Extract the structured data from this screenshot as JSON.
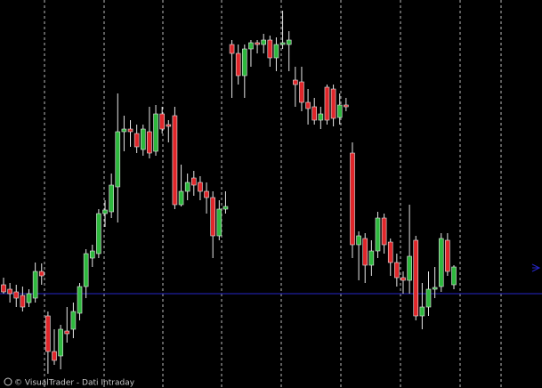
{
  "chart_data": {
    "type": "candlestick",
    "credit": "© VisualTrader - Dati Intraday",
    "ylim": [
      0,
      436
    ],
    "up_color": "#2db83d",
    "down_color": "#e0262a",
    "wick_color": "#e8e8e8",
    "hline": 106,
    "hline_color": "#2626c8",
    "grid": true,
    "open": [
      116,
      111,
      108,
      104,
      96,
      101,
      131,
      81,
      41,
      36,
      64,
      66,
      84,
      114,
      146,
      151,
      196,
      198,
      226,
      288,
      291,
      286,
      268,
      288,
      266,
      308,
      296,
      306,
      206,
      221,
      236,
      231,
      221,
      214,
      171,
      201,
      386,
      376,
      351,
      381,
      388,
      386,
      391,
      371,
      386,
      386,
      346,
      344,
      321,
      316,
      301,
      338,
      336,
      304,
      318,
      264,
      161,
      168,
      138,
      154,
      191,
      164,
      141,
      124,
      121,
      166,
      81,
      91,
      111,
      114,
      166,
      116
    ],
    "close": [
      108,
      106,
      101,
      91,
      106,
      131,
      126,
      41,
      31,
      66,
      61,
      86,
      114,
      151,
      154,
      196,
      200,
      228,
      288,
      291,
      288,
      271,
      291,
      264,
      308,
      291,
      294,
      206,
      221,
      231,
      228,
      221,
      214,
      171,
      201,
      204,
      376,
      351,
      381,
      388,
      386,
      391,
      371,
      386,
      388,
      391,
      341,
      321,
      314,
      301,
      308,
      301,
      303,
      318,
      316,
      161,
      171,
      138,
      154,
      191,
      161,
      141,
      124,
      121,
      148,
      81,
      91,
      111,
      113,
      168,
      131,
      136
    ],
    "high": [
      124,
      118,
      116,
      114,
      111,
      141,
      140,
      86,
      66,
      71,
      91,
      96,
      118,
      156,
      161,
      201,
      211,
      241,
      331,
      306,
      301,
      296,
      296,
      316,
      318,
      316,
      301,
      316,
      251,
      241,
      244,
      238,
      231,
      221,
      211,
      221,
      391,
      386,
      386,
      391,
      391,
      398,
      396,
      394,
      424,
      401,
      361,
      361,
      336,
      326,
      316,
      341,
      341,
      331,
      326,
      276,
      176,
      174,
      166,
      198,
      196,
      168,
      151,
      131,
      206,
      171,
      118,
      131,
      136,
      174,
      174,
      138
    ],
    "low": [
      106,
      96,
      91,
      86,
      91,
      96,
      116,
      16,
      26,
      21,
      51,
      56,
      76,
      101,
      136,
      146,
      181,
      191,
      186,
      266,
      271,
      264,
      261,
      258,
      261,
      286,
      276,
      201,
      204,
      211,
      216,
      211,
      196,
      146,
      166,
      196,
      326,
      341,
      326,
      361,
      376,
      376,
      361,
      356,
      381,
      356,
      316,
      311,
      296,
      296,
      291,
      296,
      294,
      296,
      311,
      146,
      121,
      118,
      126,
      146,
      151,
      126,
      114,
      106,
      106,
      76,
      66,
      81,
      101,
      108,
      126,
      111
    ]
  }
}
